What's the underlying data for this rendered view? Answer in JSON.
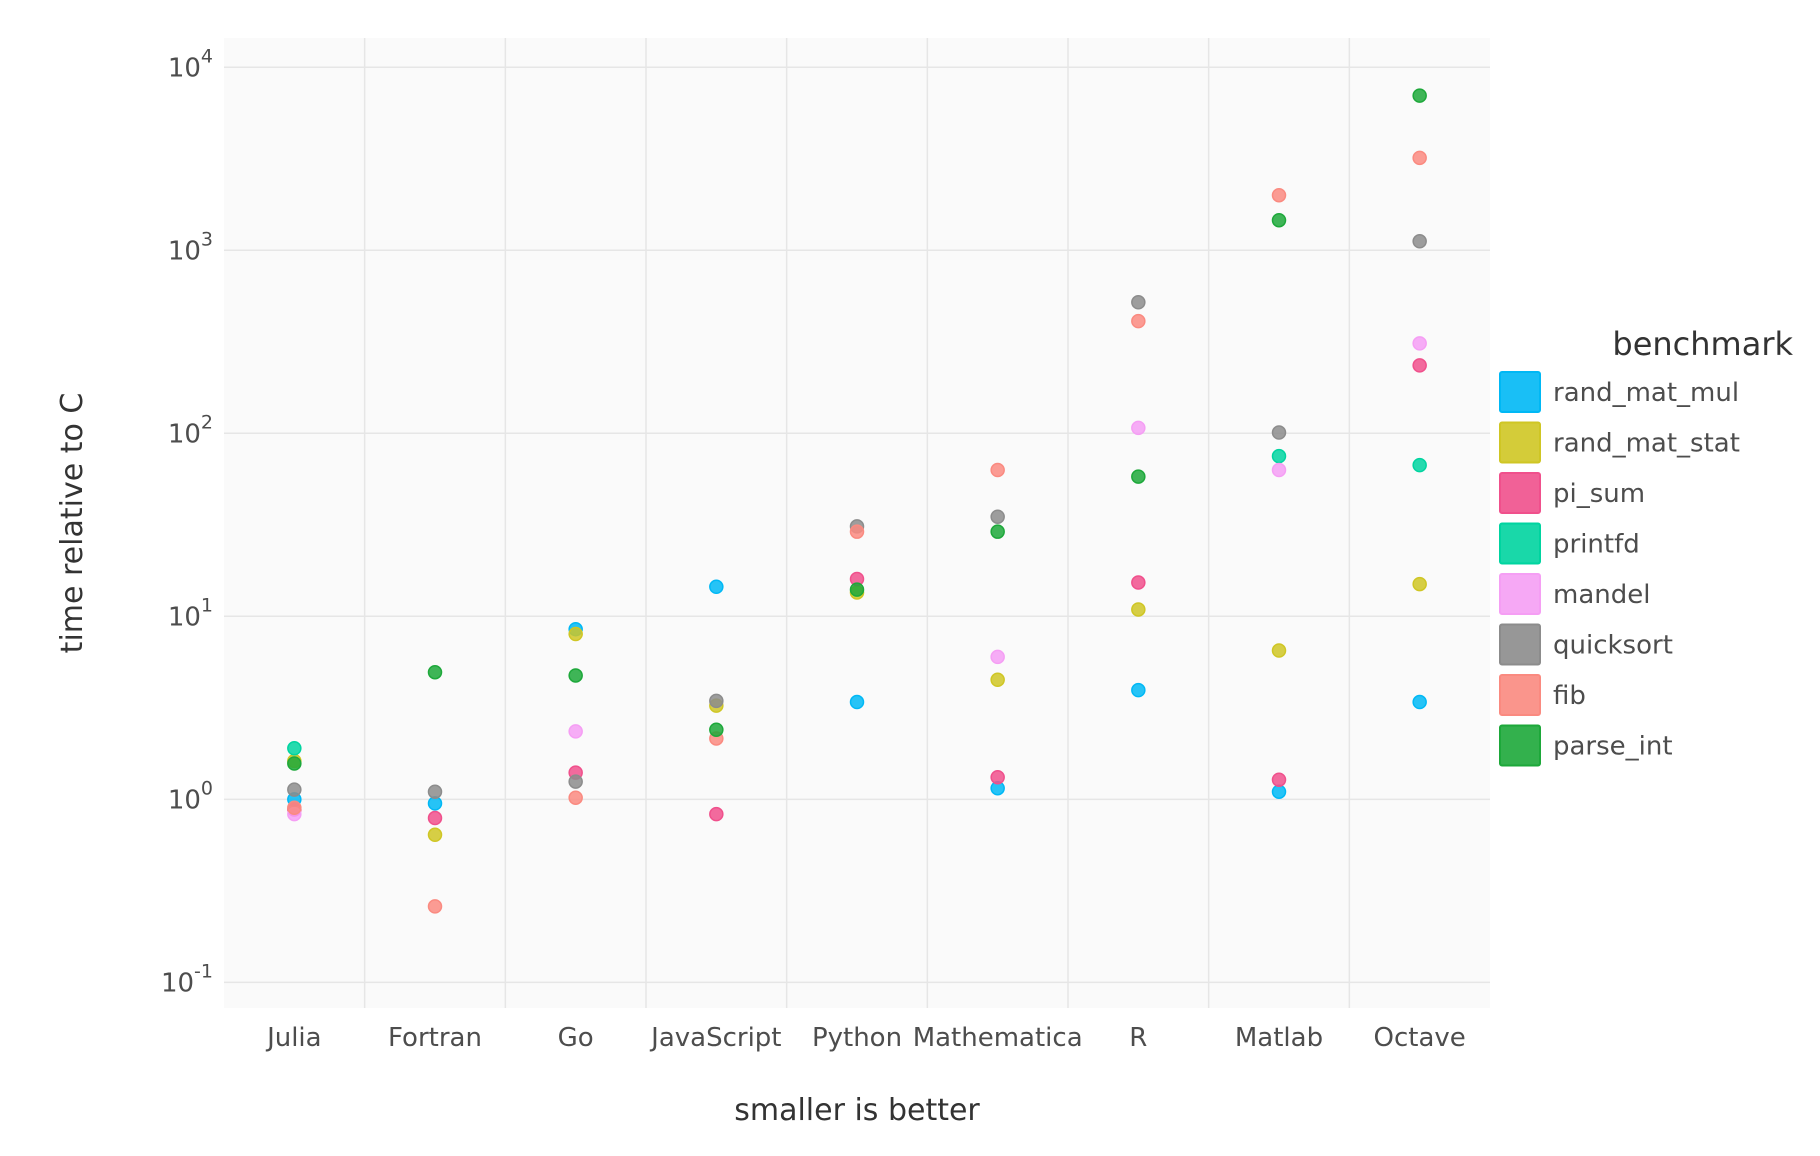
{
  "chart_data": {
    "type": "scatter",
    "title": "",
    "xlabel": "smaller is better",
    "ylabel": "time relative to C",
    "yscale": "log10",
    "ylim": [
      0.0724,
      14454
    ],
    "y_ticks": [
      {
        "value": 0.1,
        "base": "10",
        "exp": "-1"
      },
      {
        "value": 1,
        "base": "10",
        "exp": "0"
      },
      {
        "value": 10,
        "base": "10",
        "exp": "1"
      },
      {
        "value": 100,
        "base": "10",
        "exp": "2"
      },
      {
        "value": 1000,
        "base": "10",
        "exp": "3"
      },
      {
        "value": 10000,
        "base": "10",
        "exp": "4"
      }
    ],
    "categories": [
      "Julia",
      "Fortran",
      "Go",
      "JavaScript",
      "Python",
      "Mathematica",
      "R",
      "Matlab",
      "Octave"
    ],
    "grid": true,
    "legend_position": "right",
    "legend_title": "benchmark",
    "series": [
      {
        "name": "rand_mat_mul",
        "color": "#00B8F5",
        "values": [
          1.0,
          0.95,
          8.5,
          14.5,
          3.4,
          1.15,
          3.95,
          1.1,
          3.4
        ]
      },
      {
        "name": "rand_mat_stat",
        "color": "#CFC624",
        "values": [
          1.62,
          0.64,
          8.0,
          3.25,
          13.5,
          4.5,
          10.9,
          6.5,
          15.0
        ]
      },
      {
        "name": "pi_sum",
        "color": "#F0508C",
        "values": [
          0.88,
          0.79,
          1.4,
          0.83,
          16.0,
          1.32,
          15.3,
          1.28,
          235
        ]
      },
      {
        "name": "printfd",
        "color": "#00D4A0",
        "values": [
          1.9,
          null,
          null,
          null,
          null,
          null,
          null,
          75,
          67
        ]
      },
      {
        "name": "mandel",
        "color": "#F59EF4",
        "values": [
          0.83,
          null,
          2.35,
          null,
          null,
          6.0,
          107,
          63,
          310
        ]
      },
      {
        "name": "quicksort",
        "color": "#8C8C8C",
        "values": [
          1.13,
          1.1,
          1.25,
          3.45,
          31,
          35,
          520,
          101,
          1120
        ]
      },
      {
        "name": "fib",
        "color": "#FA8A80",
        "values": [
          0.9,
          0.26,
          1.02,
          2.15,
          29,
          63,
          410,
          2000,
          3200
        ]
      },
      {
        "name": "parse_int",
        "color": "#1DA83A",
        "values": [
          1.57,
          4.95,
          4.75,
          2.4,
          14.0,
          29,
          58,
          1460,
          7000
        ]
      }
    ]
  }
}
